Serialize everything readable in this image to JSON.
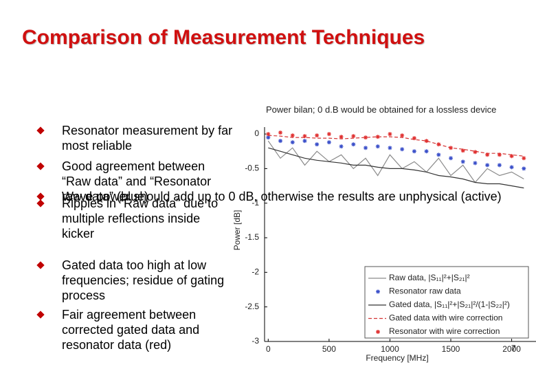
{
  "title": "Comparison of Measurement Techniques",
  "bullets": [
    "Resonator measurement by far most reliable",
    "Good agreement between “Raw data” and “Resonator raw data” (blue)",
    "Wave power should add up to 0 dB, otherwise the results are unphysical (active)",
    "Ripples in “Raw data” due to multiple reflections inside kicker",
    "Gated data too high at low frequencies; residue of gating process",
    "Fair agreement between corrected gated data and resonator data (red)"
  ],
  "page_number": "7",
  "chart_data": {
    "type": "line",
    "annotation": "Power bilan; 0 d.B would be obtained for a lossless device",
    "x_label": "Frequency [MHz]",
    "y_label": "Power [dB]",
    "x": [
      0,
      100,
      200,
      300,
      400,
      500,
      600,
      700,
      800,
      900,
      1000,
      1100,
      1200,
      1300,
      1400,
      1500,
      1600,
      1700,
      1800,
      1900,
      2000,
      2100
    ],
    "xlim": [
      -30,
      2200
    ],
    "xticks": [
      0,
      500,
      1000,
      1500,
      2000
    ],
    "ylim": [
      -3,
      0.1
    ],
    "yticks": [
      0,
      -0.5,
      -1,
      -1.5,
      -2,
      -2.5,
      -3
    ],
    "grid": false,
    "series": [
      {
        "name": "Raw data, |S₁₁|²+|S₂₁|²",
        "color": "#8a8a8a",
        "style": "line",
        "values": [
          -0.1,
          -0.35,
          -0.2,
          -0.45,
          -0.25,
          -0.4,
          -0.3,
          -0.5,
          -0.35,
          -0.6,
          -0.3,
          -0.5,
          -0.4,
          -0.55,
          -0.35,
          -0.6,
          -0.45,
          -0.7,
          -0.5,
          -0.6,
          -0.55,
          -0.65
        ]
      },
      {
        "name": "Resonator raw data",
        "color": "#3a4fc9",
        "style": "markers",
        "values": [
          -0.05,
          -0.1,
          -0.12,
          -0.1,
          -0.15,
          -0.12,
          -0.18,
          -0.15,
          -0.2,
          -0.18,
          -0.2,
          -0.22,
          -0.25,
          -0.25,
          -0.3,
          -0.35,
          -0.4,
          -0.42,
          -0.45,
          -0.45,
          -0.48,
          -0.5
        ]
      },
      {
        "name": "Gated data, |S₁₁|²+|S₂₁|²/(1-|S₂₂|²)",
        "color": "#333333",
        "style": "line",
        "values": [
          -0.2,
          -0.25,
          -0.3,
          -0.35,
          -0.38,
          -0.4,
          -0.42,
          -0.45,
          -0.45,
          -0.48,
          -0.5,
          -0.5,
          -0.52,
          -0.55,
          -0.6,
          -0.62,
          -0.65,
          -0.7,
          -0.72,
          -0.72,
          -0.75,
          -0.78
        ]
      },
      {
        "name": "Gated data with wire correction",
        "color": "#d33333",
        "style": "dashed",
        "values": [
          -0.02,
          -0.03,
          -0.05,
          -0.05,
          -0.06,
          -0.06,
          -0.07,
          -0.06,
          -0.05,
          -0.04,
          -0.04,
          -0.05,
          -0.08,
          -0.1,
          -0.15,
          -0.2,
          -0.22,
          -0.25,
          -0.28,
          -0.28,
          -0.3,
          -0.32
        ]
      },
      {
        "name": "Resonator with wire correction",
        "color": "#e03030",
        "style": "markers",
        "values": [
          0,
          0.02,
          -0.02,
          -0.03,
          -0.02,
          0,
          -0.04,
          -0.03,
          -0.05,
          -0.04,
          0,
          -0.02,
          -0.06,
          -0.1,
          -0.15,
          -0.2,
          -0.24,
          -0.26,
          -0.3,
          -0.3,
          -0.32,
          -0.35
        ]
      }
    ]
  }
}
